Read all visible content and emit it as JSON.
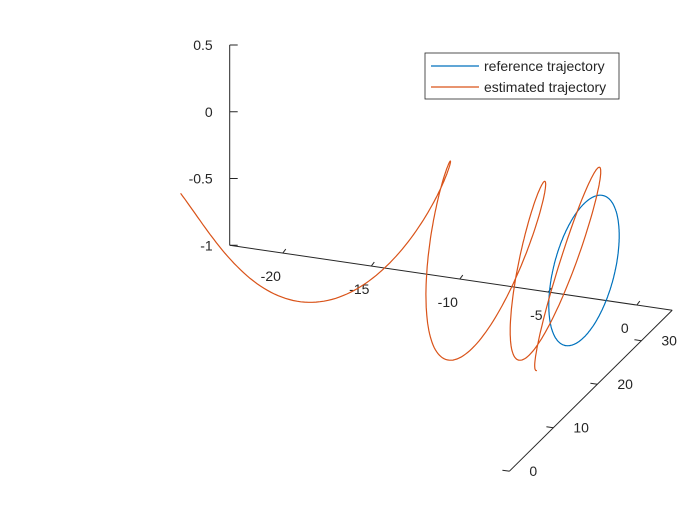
{
  "chart_data": {
    "type": "line",
    "projection": "3d",
    "title": "",
    "xlabel": "",
    "ylabel": "",
    "zlabel": "",
    "grid": false,
    "legend_position": "top-right",
    "xlim": [
      -23,
      2
    ],
    "ylim": [
      0,
      37
    ],
    "zlim": [
      -1,
      0.5
    ],
    "x_ticks": [
      -20,
      -15,
      -10,
      -5,
      0
    ],
    "x_tick_labels": [
      "-20",
      "-15",
      "-10",
      "-5",
      "0"
    ],
    "y_ticks": [
      0,
      10,
      20,
      30
    ],
    "y_tick_labels": [
      "0",
      "10",
      "20",
      "30"
    ],
    "z_ticks": [
      -1,
      -0.5,
      0,
      0.5
    ],
    "z_tick_labels": [
      "-1",
      "-0.5",
      "0",
      "0.5"
    ],
    "series": [
      {
        "name": "reference trajectory",
        "color": "#0072BD",
        "model": {
          "kind": "helix",
          "x0": 0,
          "amp0": 0,
          "decay": 0,
          "radius": 0.5,
          "cycles": 1,
          "phase": 0,
          "y_start": 17,
          "y_end": 33
        }
      },
      {
        "name": "estimated trajectory",
        "color": "#D95319",
        "model": {
          "kind": "helix",
          "x0": 0,
          "amp0": 21,
          "decay": 0.55,
          "radius": 0.5,
          "cycles": 3.2,
          "phase": 2.2,
          "y_start": 17,
          "y_end": 33
        }
      }
    ]
  },
  "legend": {
    "items": [
      {
        "label": "reference trajectory",
        "color": "#0072BD"
      },
      {
        "label": "estimated trajectory",
        "color": "#D95319"
      }
    ]
  }
}
